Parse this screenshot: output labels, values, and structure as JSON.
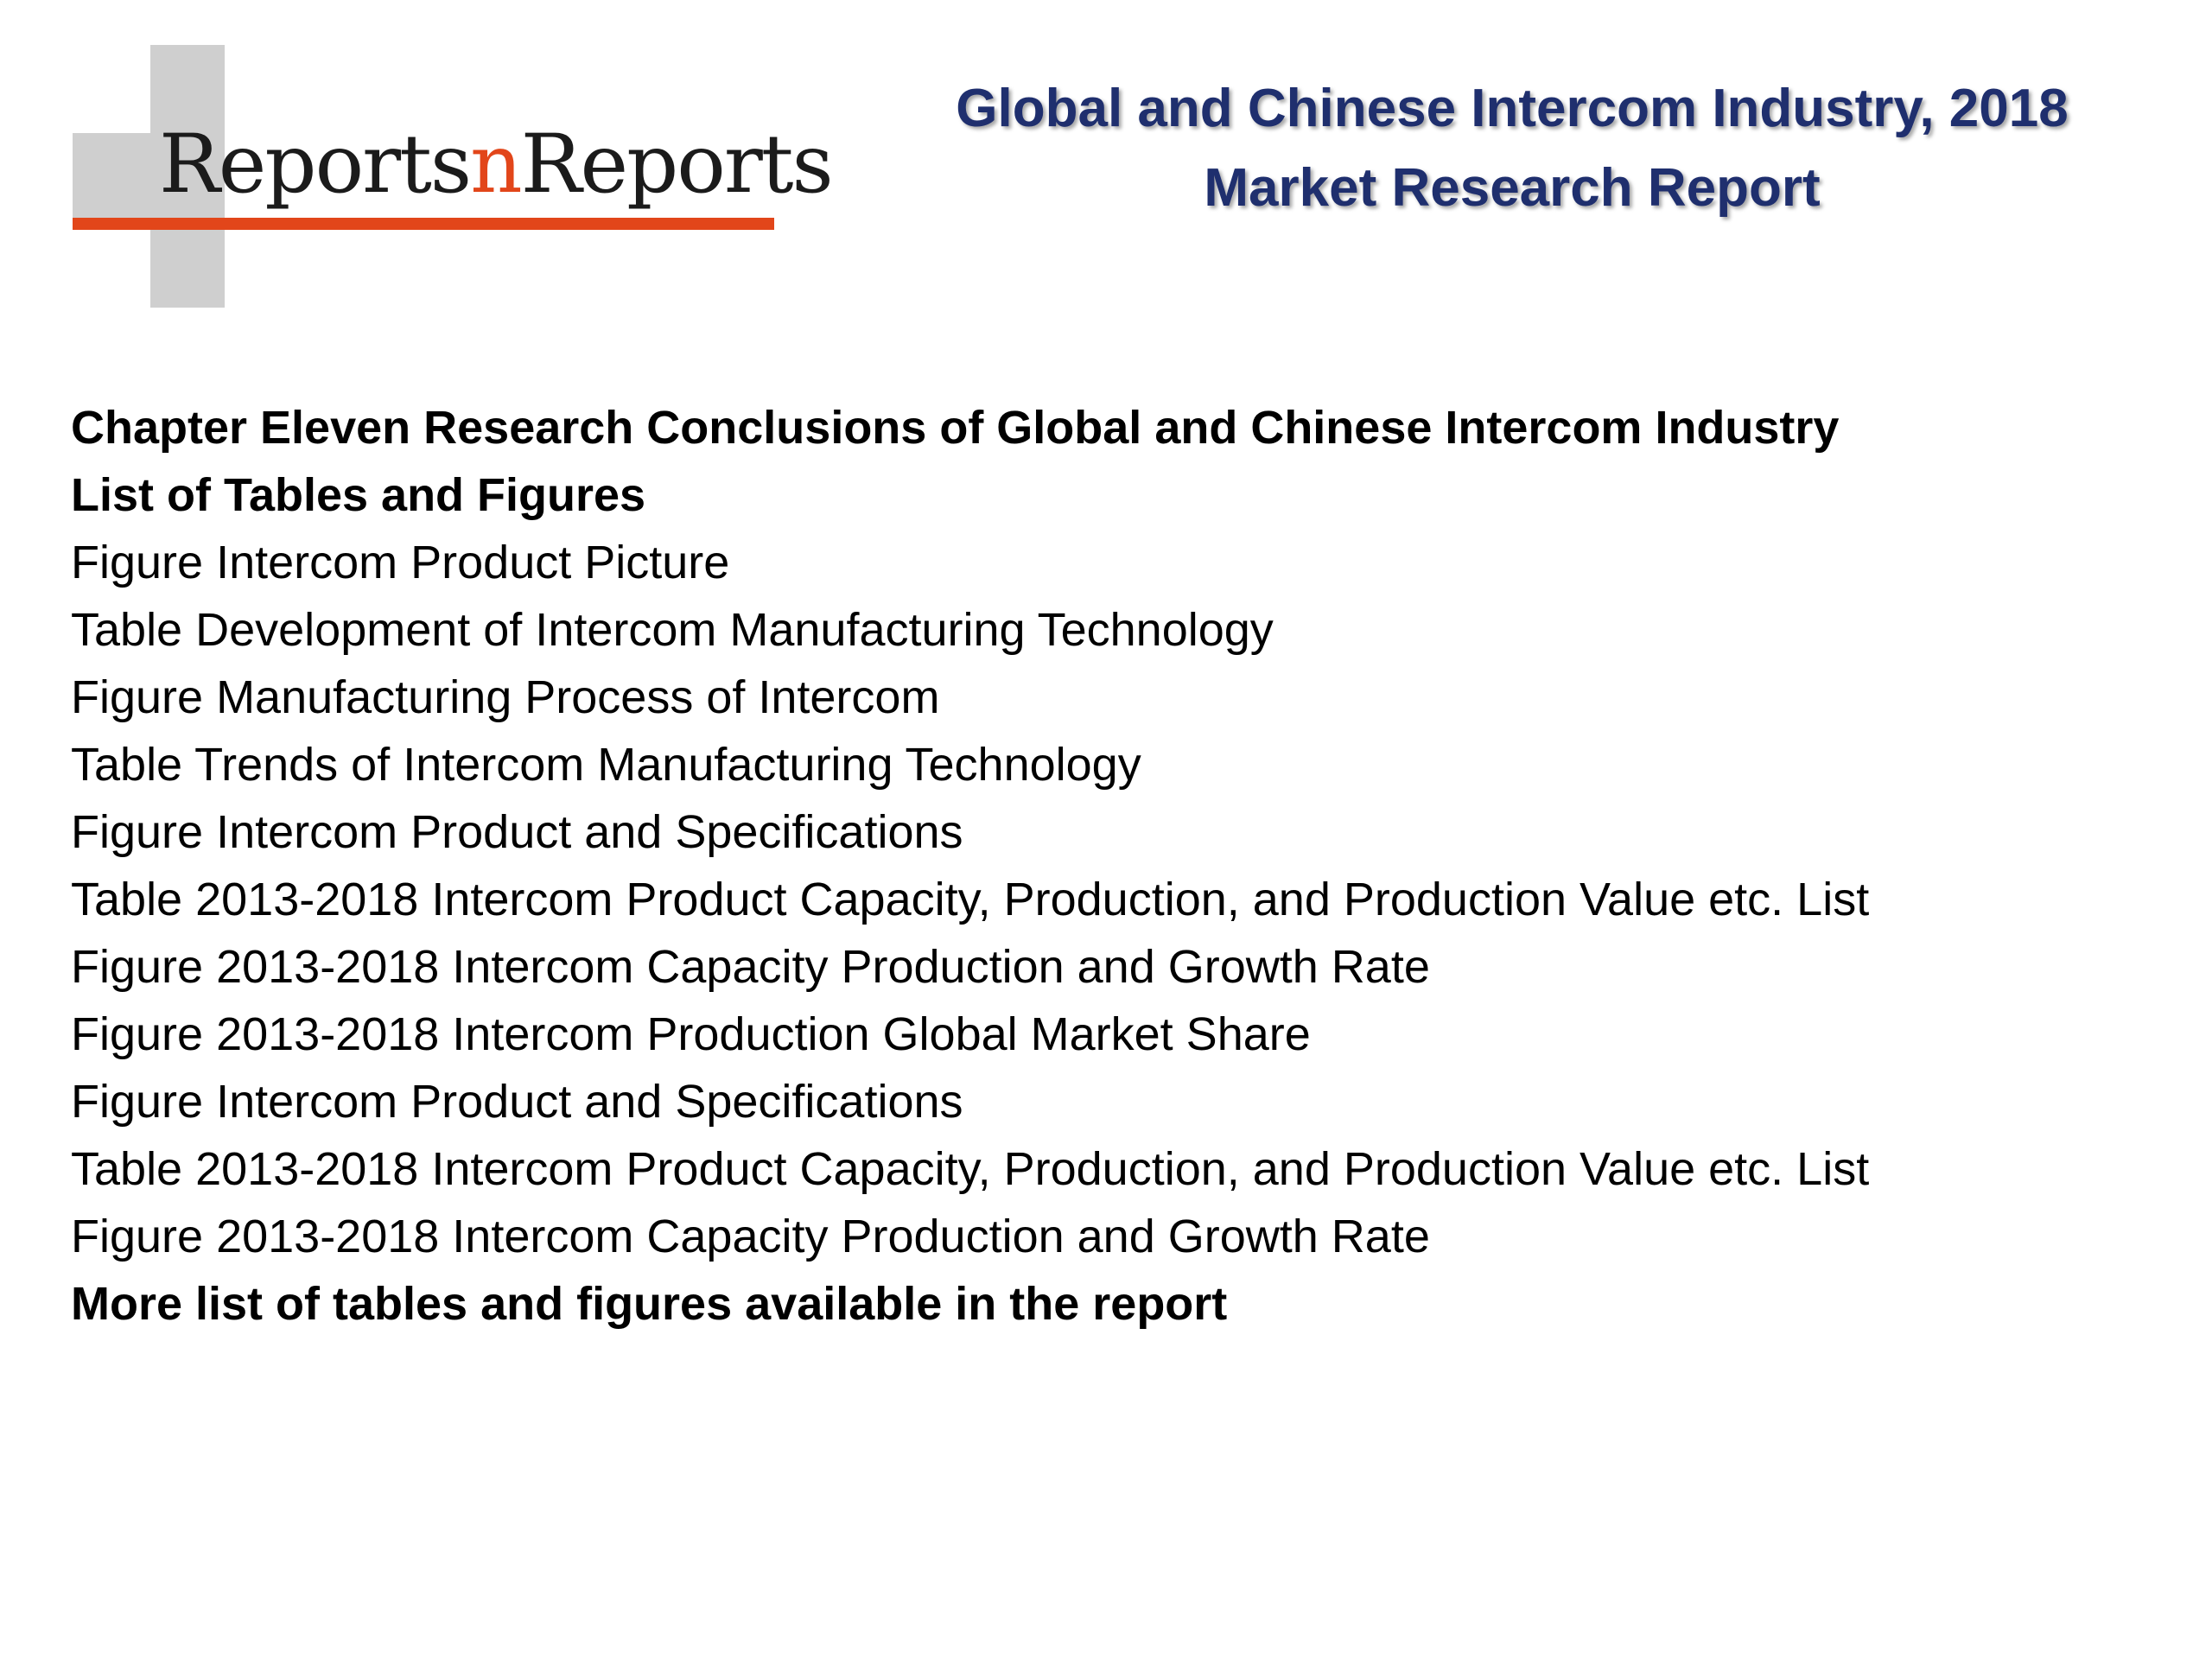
{
  "logo": {
    "text_part1": "Reports",
    "text_part2": "n",
    "text_part3": "Reports",
    "accent_color": "#e2461a",
    "block_color": "#cfcfcf"
  },
  "title": {
    "line1": "Global and Chinese Intercom Industry, 2018",
    "line2": "Market Research Report",
    "color": "#1f2f6e"
  },
  "content": {
    "chapter_heading": "Chapter Eleven Research Conclusions of Global and Chinese Intercom Industry",
    "list_heading": "List of Tables and Figures",
    "items": [
      "Figure Intercom Product Picture",
      "Table Development of Intercom Manufacturing Technology",
      "Figure Manufacturing Process of Intercom",
      "Table Trends of Intercom Manufacturing Technology",
      "Figure Intercom Product and Specifications",
      "Table 2013-2018 Intercom Product Capacity, Production, and Production Value etc. List",
      "Figure 2013-2018 Intercom Capacity Production and Growth Rate",
      "Figure 2013-2018 Intercom Production Global Market Share",
      "Figure Intercom Product and Specifications",
      "Table 2013-2018 Intercom Product Capacity, Production, and Production Value etc. List",
      "Figure 2013-2018 Intercom Capacity Production and Growth Rate"
    ],
    "footer_note": "More list of tables and figures available in the report"
  }
}
